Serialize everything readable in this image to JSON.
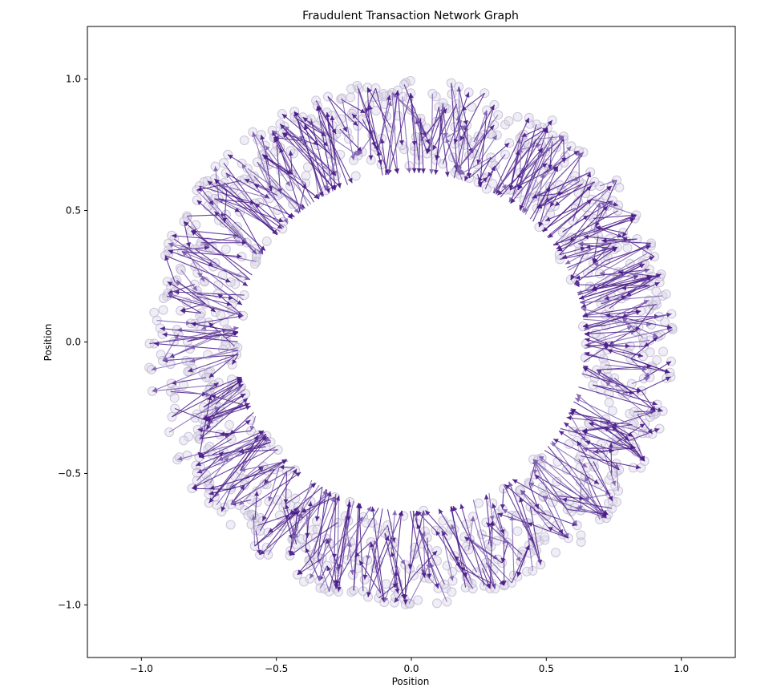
{
  "chart_data": {
    "type": "network-graph",
    "title": "Fraudulent Transaction Network Graph",
    "xlabel": "Position",
    "ylabel": "Position",
    "xlim": [
      -1.2,
      1.2
    ],
    "ylim": [
      -1.2,
      1.2
    ],
    "xticks": [
      -1.0,
      -0.5,
      0.0,
      0.5,
      1.0
    ],
    "xtick_labels": [
      "−1.0",
      "−0.5",
      "0.0",
      "0.5",
      "1.0"
    ],
    "yticks": [
      -1.0,
      -0.5,
      0.0,
      0.5,
      1.0
    ],
    "ytick_labels": [
      "−1.0",
      "−0.5",
      "0.0",
      "0.5",
      "1.0"
    ],
    "grid": false,
    "legend": false,
    "layout": "ring",
    "node_count": 1000,
    "ring_inner_radius": 0.63,
    "ring_outer_radius": 1.0,
    "node_color": "#dcd6e8",
    "node_edge_color": "#b9b0cc",
    "edge_color": "#4b1d8a",
    "edge_color_light": "#7e60b0",
    "sample_nodes": [
      {
        "x": 0.0,
        "y": 1.0
      },
      {
        "x": 0.25,
        "y": 0.95
      },
      {
        "x": 0.5,
        "y": 0.85
      },
      {
        "x": 0.7,
        "y": 0.7
      },
      {
        "x": 0.85,
        "y": 0.5
      },
      {
        "x": 0.95,
        "y": 0.25
      },
      {
        "x": 1.0,
        "y": 0.0
      },
      {
        "x": 0.95,
        "y": -0.25
      },
      {
        "x": 0.85,
        "y": -0.5
      },
      {
        "x": 0.7,
        "y": -0.7
      },
      {
        "x": 0.5,
        "y": -0.87
      },
      {
        "x": 0.25,
        "y": -0.96
      },
      {
        "x": 0.0,
        "y": -1.0
      },
      {
        "x": -0.25,
        "y": -0.96
      },
      {
        "x": -0.5,
        "y": -0.86
      },
      {
        "x": -0.7,
        "y": -0.71
      },
      {
        "x": -0.86,
        "y": -0.5
      },
      {
        "x": -0.96,
        "y": -0.25
      },
      {
        "x": -1.0,
        "y": 0.03
      },
      {
        "x": -0.96,
        "y": 0.25
      },
      {
        "x": -0.85,
        "y": 0.5
      },
      {
        "x": -0.7,
        "y": 0.7
      },
      {
        "x": -0.5,
        "y": 0.86
      },
      {
        "x": -0.25,
        "y": 0.96
      }
    ]
  }
}
